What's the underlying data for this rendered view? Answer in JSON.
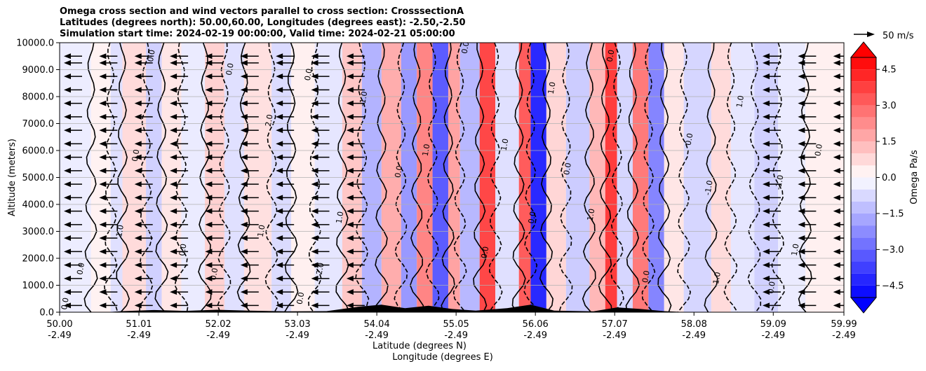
{
  "chart_data": {
    "type": "contour_cross_section",
    "title_lines": [
      "Omega cross section and wind vectors parallel to cross section: CrosssectionA",
      "Latitudes (degrees north): 50.00,60.00, Longitudes (degrees east): -2.50,-2.50",
      "Simulation start time: 2024-02-19 00:00:00, Valid time: 2024-02-21 05:00:00"
    ],
    "xlabel_lines": [
      "Latitude (degrees N)",
      "Longitude (degrees E)"
    ],
    "ylabel": "Altitude (meters)",
    "xlim": [
      50.0,
      59.99
    ],
    "ylim": [
      0,
      10000
    ],
    "x_ticks": [
      {
        "lat": "50.00",
        "lon": "-2.49",
        "value": 50.0
      },
      {
        "lat": "51.01",
        "lon": "-2.49",
        "value": 51.01
      },
      {
        "lat": "52.02",
        "lon": "-2.49",
        "value": 52.02
      },
      {
        "lat": "53.03",
        "lon": "-2.49",
        "value": 53.03
      },
      {
        "lat": "54.04",
        "lon": "-2.49",
        "value": 54.04
      },
      {
        "lat": "55.05",
        "lon": "-2.49",
        "value": 55.05
      },
      {
        "lat": "56.06",
        "lon": "-2.49",
        "value": 56.06
      },
      {
        "lat": "57.07",
        "lon": "-2.49",
        "value": 57.07
      },
      {
        "lat": "58.08",
        "lon": "-2.49",
        "value": 58.08
      },
      {
        "lat": "59.09",
        "lon": "-2.49",
        "value": 59.09
      },
      {
        "lat": "59.99",
        "lon": "-2.49",
        "value": 59.99
      }
    ],
    "y_ticks": [
      {
        "label": "0.0",
        "value": 0
      },
      {
        "label": "1000.0",
        "value": 1000
      },
      {
        "label": "2000.0",
        "value": 2000
      },
      {
        "label": "3000.0",
        "value": 3000
      },
      {
        "label": "4000.0",
        "value": 4000
      },
      {
        "label": "5000.0",
        "value": 5000
      },
      {
        "label": "6000.0",
        "value": 6000
      },
      {
        "label": "7000.0",
        "value": 7000
      },
      {
        "label": "8000.0",
        "value": 8000
      },
      {
        "label": "9000.0",
        "value": 9000
      },
      {
        "label": "10000.0",
        "value": 10000
      }
    ],
    "grid": true,
    "colorbar": {
      "label": "Omega Pa/s",
      "min": -5.0,
      "max": 5.0,
      "tick_labels": [
        {
          "label": "4.5",
          "value": 4.5
        },
        {
          "label": "3.0",
          "value": 3.0
        },
        {
          "label": "1.5",
          "value": 1.5
        },
        {
          "label": "0.0",
          "value": 0.0
        },
        {
          "label": "−1.5",
          "value": -1.5
        },
        {
          "label": "−3.0",
          "value": -3.0
        },
        {
          "label": "−4.5",
          "value": -4.5
        }
      ],
      "neg_color": "#0000ff",
      "pos_color": "#ff0000",
      "mid_color": "#ffffff"
    },
    "quiver_key": {
      "label": "50 m/s",
      "magnitude": 50
    },
    "omega_bands": [
      {
        "lat0": 50.0,
        "lat1": 50.4,
        "omega": -0.35,
        "h": 10000
      },
      {
        "lat0": 50.4,
        "lat1": 50.65,
        "omega": 0.25,
        "h": 10000
      },
      {
        "lat0": 50.65,
        "lat1": 50.8,
        "omega": -0.6,
        "h": 10000
      },
      {
        "lat0": 50.8,
        "lat1": 51.1,
        "omega": 0.7,
        "h": 10000
      },
      {
        "lat0": 51.1,
        "lat1": 51.3,
        "omega": -0.9,
        "h": 10000
      },
      {
        "lat0": 51.3,
        "lat1": 51.55,
        "omega": 0.5,
        "h": 10000
      },
      {
        "lat0": 51.55,
        "lat1": 51.85,
        "omega": -0.4,
        "h": 10000
      },
      {
        "lat0": 51.85,
        "lat1": 52.1,
        "omega": 0.9,
        "h": 10000
      },
      {
        "lat0": 52.1,
        "lat1": 52.35,
        "omega": -0.6,
        "h": 10000
      },
      {
        "lat0": 52.35,
        "lat1": 52.7,
        "omega": 0.6,
        "h": 10000
      },
      {
        "lat0": 52.7,
        "lat1": 52.95,
        "omega": -0.7,
        "h": 10000
      },
      {
        "lat0": 52.95,
        "lat1": 53.25,
        "omega": 0.3,
        "h": 10000
      },
      {
        "lat0": 53.25,
        "lat1": 53.6,
        "omega": -0.5,
        "h": 10000
      },
      {
        "lat0": 53.6,
        "lat1": 53.85,
        "omega": 1.1,
        "h": 10000
      },
      {
        "lat0": 53.85,
        "lat1": 54.1,
        "omega": -1.5,
        "h": 10000
      },
      {
        "lat0": 54.1,
        "lat1": 54.35,
        "omega": 1.6,
        "h": 10000
      },
      {
        "lat0": 54.35,
        "lat1": 54.55,
        "omega": -2.0,
        "h": 10000
      },
      {
        "lat0": 54.55,
        "lat1": 54.75,
        "omega": 2.4,
        "h": 10000
      },
      {
        "lat0": 54.75,
        "lat1": 54.95,
        "omega": -3.2,
        "h": 10000
      },
      {
        "lat0": 54.95,
        "lat1": 55.1,
        "omega": 1.8,
        "h": 10000
      },
      {
        "lat0": 55.1,
        "lat1": 55.35,
        "omega": -1.4,
        "h": 10000
      },
      {
        "lat0": 55.35,
        "lat1": 55.55,
        "omega": 3.6,
        "h": 10000
      },
      {
        "lat0": 55.55,
        "lat1": 55.85,
        "omega": -0.6,
        "h": 10000
      },
      {
        "lat0": 55.85,
        "lat1": 56.0,
        "omega": 3.2,
        "h": 10000
      },
      {
        "lat0": 56.0,
        "lat1": 56.2,
        "omega": -4.2,
        "h": 10000
      },
      {
        "lat0": 56.2,
        "lat1": 56.45,
        "omega": 0.8,
        "h": 10000
      },
      {
        "lat0": 56.45,
        "lat1": 56.75,
        "omega": -1.0,
        "h": 10000
      },
      {
        "lat0": 56.75,
        "lat1": 56.95,
        "omega": 1.4,
        "h": 10000
      },
      {
        "lat0": 56.95,
        "lat1": 57.1,
        "omega": 3.8,
        "h": 10000
      },
      {
        "lat0": 57.1,
        "lat1": 57.3,
        "omega": -0.8,
        "h": 10000
      },
      {
        "lat0": 57.3,
        "lat1": 57.5,
        "omega": 2.6,
        "h": 10000
      },
      {
        "lat0": 57.5,
        "lat1": 57.7,
        "omega": -2.4,
        "h": 10000
      },
      {
        "lat0": 57.7,
        "lat1": 57.95,
        "omega": 0.5,
        "h": 10000
      },
      {
        "lat0": 57.95,
        "lat1": 58.3,
        "omega": -0.8,
        "h": 10000
      },
      {
        "lat0": 58.3,
        "lat1": 58.55,
        "omega": 0.7,
        "h": 10000
      },
      {
        "lat0": 58.55,
        "lat1": 58.85,
        "omega": -0.5,
        "h": 10000
      },
      {
        "lat0": 58.85,
        "lat1": 59.15,
        "omega": -0.9,
        "h": 10000
      },
      {
        "lat0": 59.15,
        "lat1": 59.5,
        "omega": -0.4,
        "h": 10000
      },
      {
        "lat0": 59.5,
        "lat1": 59.99,
        "omega": 0.3,
        "h": 10000
      }
    ],
    "terrain": [
      {
        "lat": 50.0,
        "alt": 0
      },
      {
        "lat": 50.6,
        "alt": 0
      },
      {
        "lat": 50.8,
        "alt": 40
      },
      {
        "lat": 51.2,
        "alt": 80
      },
      {
        "lat": 51.6,
        "alt": 50
      },
      {
        "lat": 52.0,
        "alt": 90
      },
      {
        "lat": 52.4,
        "alt": 60
      },
      {
        "lat": 52.9,
        "alt": 30
      },
      {
        "lat": 53.4,
        "alt": 40
      },
      {
        "lat": 53.8,
        "alt": 200
      },
      {
        "lat": 54.1,
        "alt": 280
      },
      {
        "lat": 54.4,
        "alt": 150
      },
      {
        "lat": 54.7,
        "alt": 240
      },
      {
        "lat": 55.0,
        "alt": 120
      },
      {
        "lat": 55.3,
        "alt": 60
      },
      {
        "lat": 55.7,
        "alt": 150
      },
      {
        "lat": 56.0,
        "alt": 280
      },
      {
        "lat": 56.3,
        "alt": 60
      },
      {
        "lat": 56.8,
        "alt": 30
      },
      {
        "lat": 57.1,
        "alt": 180
      },
      {
        "lat": 57.4,
        "alt": 120
      },
      {
        "lat": 57.7,
        "alt": 40
      },
      {
        "lat": 58.0,
        "alt": 0
      },
      {
        "lat": 59.99,
        "alt": 0
      }
    ],
    "wind_vector_levels": [
      250,
      750,
      1250,
      1750,
      2250,
      2750,
      3250,
      3750,
      4250,
      4750,
      5250,
      5750,
      6250,
      6750,
      7250,
      7750,
      8250,
      8750,
      9250,
      9500
    ],
    "wind_vector_lats": [
      50.0,
      50.45,
      50.9,
      51.35,
      51.8,
      52.25,
      52.7,
      53.15,
      53.6,
      58.9,
      59.35,
      59.8
    ],
    "wind_vector_speed_ms": 40,
    "contour_labels": [
      {
        "text": "0.0",
        "lat": 50.1,
        "alt": 300
      },
      {
        "text": "0.0",
        "lat": 50.3,
        "alt": 1600
      },
      {
        "text": "1.0",
        "lat": 50.8,
        "alt": 3000
      },
      {
        "text": "0.0",
        "lat": 51.0,
        "alt": 5800
      },
      {
        "text": "0.0",
        "lat": 51.2,
        "alt": 9500
      },
      {
        "text": "0.0",
        "lat": 51.6,
        "alt": 2300
      },
      {
        "text": "0.0",
        "lat": 52.0,
        "alt": 1400
      },
      {
        "text": "0.0",
        "lat": 52.2,
        "alt": 9000
      },
      {
        "text": "1.0",
        "lat": 52.6,
        "alt": 3000
      },
      {
        "text": "2.0",
        "lat": 52.7,
        "alt": 7100
      },
      {
        "text": "0.0",
        "lat": 53.1,
        "alt": 500
      },
      {
        "text": "0.0",
        "lat": 53.2,
        "alt": 8800
      },
      {
        "text": "2.0",
        "lat": 53.35,
        "alt": 1600
      },
      {
        "text": "1.0",
        "lat": 53.6,
        "alt": 3500
      },
      {
        "text": "-1.0",
        "lat": 53.9,
        "alt": 7900
      },
      {
        "text": "0.0",
        "lat": 54.35,
        "alt": 5200
      },
      {
        "text": "1.0",
        "lat": 54.7,
        "alt": 6000
      },
      {
        "text": "0.0",
        "lat": 55.2,
        "alt": 9800
      },
      {
        "text": "0.0",
        "lat": 55.45,
        "alt": 2200
      },
      {
        "text": "1.0",
        "lat": 55.7,
        "alt": 6200
      },
      {
        "text": "0.0",
        "lat": 56.05,
        "alt": 3500
      },
      {
        "text": "1.0",
        "lat": 56.3,
        "alt": 8300
      },
      {
        "text": "0.0",
        "lat": 56.5,
        "alt": 5300
      },
      {
        "text": "1.0",
        "lat": 56.8,
        "alt": 3600
      },
      {
        "text": "0.0",
        "lat": 57.05,
        "alt": 9500
      },
      {
        "text": "0.0",
        "lat": 57.5,
        "alt": 1300
      },
      {
        "text": "0.0",
        "lat": 58.05,
        "alt": 6400
      },
      {
        "text": "-1.0",
        "lat": 58.3,
        "alt": 4600
      },
      {
        "text": "-1.0",
        "lat": 58.4,
        "alt": 1200
      },
      {
        "text": "1.0",
        "lat": 58.7,
        "alt": 7800
      },
      {
        "text": "0.0",
        "lat": 59.1,
        "alt": 900
      },
      {
        "text": "-1.0",
        "lat": 59.2,
        "alt": 4800
      },
      {
        "text": "1.0",
        "lat": 59.4,
        "alt": 2300
      },
      {
        "text": "0.0",
        "lat": 59.7,
        "alt": 6000
      }
    ]
  }
}
